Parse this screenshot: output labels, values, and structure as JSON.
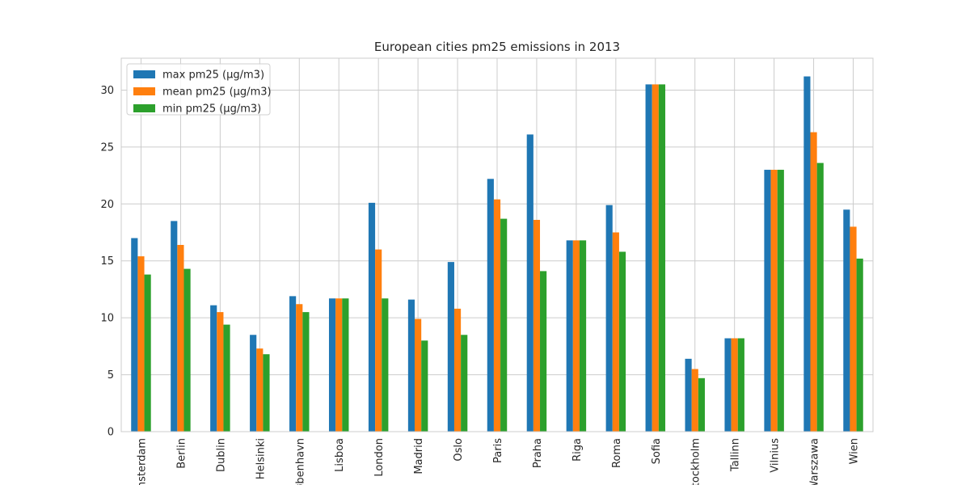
{
  "chart_data": {
    "type": "bar",
    "title": "European cities pm25 emissions in 2013",
    "xlabel": "",
    "ylabel": "",
    "ylim": [
      0,
      32.8
    ],
    "yticks": [
      0,
      5,
      10,
      15,
      20,
      25,
      30
    ],
    "grid": true,
    "legend_position": "top-left",
    "categories": [
      "Amsterdam",
      "Berlin",
      "Dublin",
      "Helsinki",
      "København",
      "Lisboa",
      "London",
      "Madrid",
      "Oslo",
      "Paris",
      "Praha",
      "Riga",
      "Roma",
      "Sofia",
      "Stockholm",
      "Tallinn",
      "Vilnius",
      "Warszawa",
      "Wien"
    ],
    "series": [
      {
        "name": "max pm25 (µg/m3)",
        "color": "#1f77b4",
        "values": [
          17.0,
          18.5,
          11.1,
          8.5,
          11.9,
          11.7,
          20.1,
          11.6,
          14.9,
          22.2,
          26.1,
          16.8,
          19.9,
          30.5,
          6.4,
          8.2,
          23.0,
          31.2,
          19.5
        ]
      },
      {
        "name": "mean pm25 (µg/m3)",
        "color": "#ff7f0e",
        "values": [
          15.4,
          16.4,
          10.5,
          7.3,
          11.2,
          11.7,
          16.0,
          9.9,
          10.8,
          20.4,
          18.6,
          16.8,
          17.5,
          30.5,
          5.5,
          8.2,
          23.0,
          26.3,
          18.0
        ]
      },
      {
        "name": "min pm25 (µg/m3)",
        "color": "#2ca02c",
        "values": [
          13.8,
          14.3,
          9.4,
          6.8,
          10.5,
          11.7,
          11.7,
          8.0,
          8.5,
          18.7,
          14.1,
          16.8,
          15.8,
          30.5,
          4.7,
          8.2,
          23.0,
          23.6,
          15.2
        ]
      }
    ]
  }
}
